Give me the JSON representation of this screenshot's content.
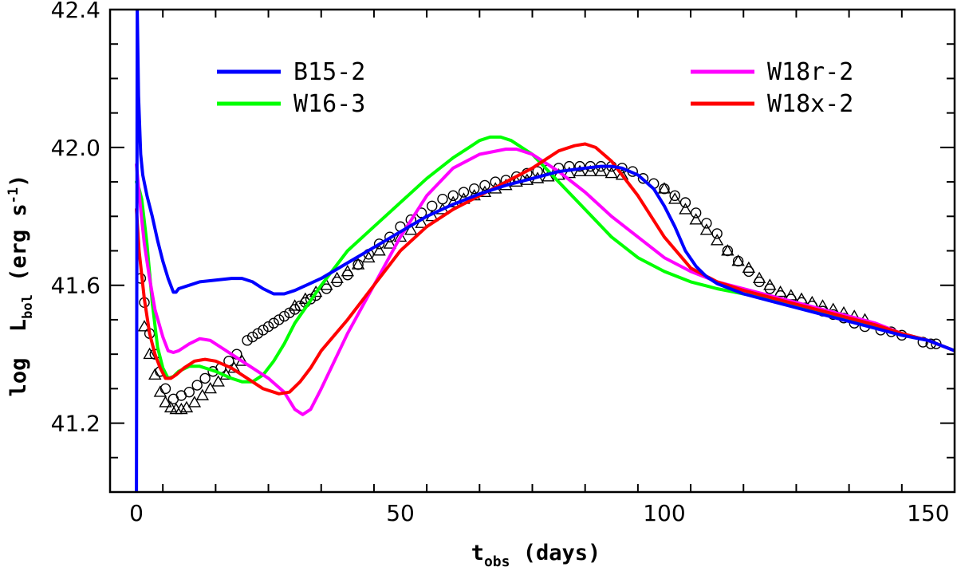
{
  "chart_data": {
    "type": "line",
    "title": "",
    "xlabel": {
      "main": "t",
      "sub": "obs",
      "rest": " (days)"
    },
    "ylabel": {
      "main": "log  L",
      "sub": "bol",
      "rest": " (erg s",
      "sup": "-1",
      "close": ")"
    },
    "xlim": [
      -5,
      155
    ],
    "ylim": [
      41.0,
      42.4
    ],
    "x_ticks": [
      0,
      50,
      100,
      150
    ],
    "x_tick_labels": [
      "0",
      "50",
      "100",
      "150"
    ],
    "y_ticks": [
      41.2,
      41.6,
      42.0,
      42.4
    ],
    "y_tick_labels": [
      "41.2",
      "41.6",
      "42.0",
      "42.4"
    ],
    "series": [
      {
        "name": "B15-2",
        "color": "#0000ff",
        "x": [
          0,
          0.15,
          0.4,
          0.8,
          1.2,
          2,
          3,
          4,
          5,
          6,
          7,
          7.5,
          8,
          10,
          12,
          15,
          18,
          20,
          22,
          24,
          26,
          28,
          30,
          35,
          40,
          45,
          50,
          55,
          60,
          65,
          70,
          75,
          80,
          85,
          88,
          90,
          92,
          95,
          98,
          100,
          102,
          104,
          106,
          108,
          110,
          115,
          120,
          125,
          130,
          135,
          140,
          145,
          150,
          155
        ],
        "y": [
          41.0,
          42.4,
          42.15,
          41.98,
          41.92,
          41.86,
          41.8,
          41.73,
          41.67,
          41.62,
          41.58,
          41.58,
          41.59,
          41.6,
          41.61,
          41.615,
          41.62,
          41.62,
          41.61,
          41.59,
          41.575,
          41.575,
          41.585,
          41.62,
          41.665,
          41.71,
          41.755,
          41.8,
          41.835,
          41.865,
          41.89,
          41.91,
          41.93,
          41.94,
          41.945,
          41.945,
          41.94,
          41.92,
          41.88,
          41.83,
          41.77,
          41.7,
          41.655,
          41.625,
          41.605,
          41.575,
          41.555,
          41.535,
          41.515,
          41.495,
          41.475,
          41.455,
          41.44,
          41.41
        ]
      },
      {
        "name": "W16-3",
        "color": "#00ff00",
        "x": [
          0,
          0.5,
          1,
          2,
          3,
          4,
          5,
          6,
          7,
          8,
          10,
          12,
          15,
          18,
          20,
          22,
          24,
          26,
          28,
          30,
          35,
          40,
          45,
          50,
          55,
          60,
          63,
          65,
          67,
          69,
          71,
          73,
          75,
          80,
          85,
          90,
          95,
          100,
          105,
          110,
          115,
          120,
          125,
          130,
          135,
          140,
          145,
          150,
          155
        ],
        "y": [
          41.9,
          41.88,
          41.85,
          41.72,
          41.55,
          41.42,
          41.36,
          41.33,
          41.335,
          41.35,
          41.365,
          41.365,
          41.35,
          41.33,
          41.32,
          41.32,
          41.34,
          41.38,
          41.43,
          41.49,
          41.6,
          41.7,
          41.77,
          41.84,
          41.91,
          41.97,
          42.0,
          42.02,
          42.03,
          42.03,
          42.02,
          42.0,
          41.98,
          41.9,
          41.82,
          41.74,
          41.68,
          41.64,
          41.61,
          41.59,
          41.575,
          41.56,
          41.54,
          41.52,
          41.5,
          41.48,
          41.46,
          41.44,
          41.41
        ]
      },
      {
        "name": "W18r-2",
        "color": "#ff00ff",
        "x": [
          0,
          0.3,
          0.8,
          1.5,
          2.5,
          3.5,
          5,
          6,
          7,
          8,
          9,
          10,
          12,
          14,
          16,
          18,
          20,
          22,
          25,
          28,
          30,
          31.5,
          33,
          35,
          40,
          45,
          50,
          55,
          60,
          65,
          70,
          72,
          75,
          80,
          85,
          90,
          95,
          100,
          105,
          110,
          115,
          120,
          125,
          130,
          135,
          140,
          145,
          150,
          155
        ],
        "y": [
          41.95,
          41.9,
          41.82,
          41.72,
          41.62,
          41.53,
          41.45,
          41.41,
          41.405,
          41.41,
          41.42,
          41.43,
          41.445,
          41.44,
          41.42,
          41.4,
          41.38,
          41.36,
          41.33,
          41.29,
          41.24,
          41.225,
          41.24,
          41.3,
          41.46,
          41.6,
          41.74,
          41.86,
          41.94,
          41.98,
          41.995,
          41.995,
          41.98,
          41.93,
          41.87,
          41.8,
          41.74,
          41.68,
          41.64,
          41.61,
          41.59,
          41.57,
          41.55,
          41.53,
          41.51,
          41.49,
          41.46,
          41.44,
          41.41
        ]
      },
      {
        "name": "W18x-2",
        "color": "#ff0000",
        "x": [
          0,
          0.5,
          1.5,
          2.5,
          3.5,
          4.5,
          5.5,
          6.5,
          7.5,
          9,
          11,
          13,
          15,
          18,
          21,
          24,
          27,
          29,
          31,
          33,
          35,
          40,
          45,
          50,
          55,
          60,
          65,
          70,
          75,
          80,
          83,
          85,
          87,
          90,
          95,
          100,
          105,
          110,
          115,
          120,
          125,
          130,
          135,
          140,
          145,
          150,
          155
        ],
        "y": [
          41.82,
          41.7,
          41.56,
          41.46,
          41.4,
          41.36,
          41.33,
          41.33,
          41.34,
          41.36,
          41.38,
          41.385,
          41.38,
          41.36,
          41.33,
          41.3,
          41.285,
          41.29,
          41.32,
          41.36,
          41.41,
          41.5,
          41.6,
          41.7,
          41.77,
          41.82,
          41.86,
          41.9,
          41.94,
          41.99,
          42.005,
          42.01,
          42.0,
          41.96,
          41.86,
          41.74,
          41.65,
          41.61,
          41.585,
          41.565,
          41.545,
          41.525,
          41.505,
          41.485,
          41.46,
          41.44,
          41.41
        ]
      }
    ],
    "observations": [
      {
        "name": "circles",
        "marker": "circle",
        "x": [
          0.8,
          1.5,
          2.5,
          3.5,
          4.5,
          5.5,
          7,
          8.5,
          10,
          11.5,
          13,
          14.5,
          16,
          17.5,
          19,
          21,
          22,
          23,
          24,
          25,
          26,
          27,
          28,
          29,
          30,
          31,
          32,
          33,
          34,
          36,
          38,
          40,
          42,
          44,
          46,
          48,
          50,
          52,
          54,
          56,
          58,
          60,
          62,
          64,
          66,
          68,
          70,
          72,
          74,
          76,
          78,
          80,
          82,
          84,
          86,
          88,
          90,
          92,
          94,
          96,
          98,
          100,
          102,
          104,
          106,
          108,
          110,
          112,
          114,
          116,
          118,
          120,
          122,
          124,
          126,
          128,
          130,
          132,
          134,
          136,
          138,
          141,
          143,
          145,
          149,
          150.5,
          151.5
        ],
        "y": [
          41.62,
          41.55,
          41.46,
          41.4,
          41.35,
          41.3,
          41.27,
          41.28,
          41.29,
          41.31,
          41.33,
          41.35,
          41.36,
          41.38,
          41.4,
          41.44,
          41.45,
          41.46,
          41.47,
          41.48,
          41.49,
          41.5,
          41.51,
          41.52,
          41.53,
          41.54,
          41.55,
          41.56,
          41.57,
          41.59,
          41.61,
          41.63,
          41.66,
          41.69,
          41.72,
          41.74,
          41.77,
          41.79,
          41.81,
          41.83,
          41.85,
          41.86,
          41.87,
          41.88,
          41.89,
          41.9,
          41.905,
          41.915,
          41.925,
          41.93,
          41.935,
          41.94,
          41.945,
          41.945,
          41.945,
          41.945,
          41.945,
          41.94,
          41.93,
          41.91,
          41.895,
          41.88,
          41.86,
          41.84,
          41.81,
          41.78,
          41.75,
          41.7,
          41.67,
          41.64,
          41.61,
          41.59,
          41.57,
          41.56,
          41.55,
          41.54,
          41.525,
          41.515,
          41.505,
          41.49,
          41.48,
          41.47,
          41.465,
          41.455,
          41.435,
          41.43,
          41.43
        ]
      },
      {
        "name": "triangles",
        "marker": "triangle",
        "x": [
          1.5,
          2.5,
          3.5,
          4.5,
          5.5,
          6.5,
          7.5,
          8.5,
          9.5,
          11,
          12.5,
          14,
          15.5,
          17,
          18.5,
          20,
          30,
          32,
          34,
          36,
          38,
          40,
          42,
          44,
          46,
          48,
          50,
          52,
          54,
          56,
          58,
          60,
          62,
          64,
          66,
          68,
          70,
          72,
          74,
          76,
          78,
          80,
          82,
          84,
          86,
          88,
          90,
          92,
          100,
          102,
          104,
          106,
          108,
          110,
          112,
          114,
          116,
          118,
          120,
          122,
          124,
          126,
          128,
          130,
          132,
          134,
          136,
          138
        ],
        "y": [
          41.48,
          41.4,
          41.34,
          41.29,
          41.26,
          41.245,
          41.24,
          41.24,
          41.245,
          41.26,
          41.28,
          41.3,
          41.32,
          41.34,
          41.36,
          41.38,
          41.54,
          41.56,
          41.58,
          41.6,
          41.62,
          41.64,
          41.66,
          41.68,
          41.7,
          41.72,
          41.74,
          41.76,
          41.78,
          41.8,
          41.82,
          41.84,
          41.85,
          41.86,
          41.87,
          41.88,
          41.89,
          41.9,
          41.905,
          41.91,
          41.915,
          41.92,
          41.925,
          41.93,
          41.93,
          41.93,
          41.925,
          41.92,
          41.88,
          41.85,
          41.82,
          41.79,
          41.76,
          41.73,
          41.7,
          41.67,
          41.65,
          41.62,
          41.6,
          41.58,
          41.57,
          41.56,
          41.55,
          41.54,
          41.53,
          41.52,
          41.51,
          41.5
        ]
      }
    ],
    "legend": [
      {
        "label": "B15-2",
        "color": "#0000ff"
      },
      {
        "label": "W16-3",
        "color": "#00ff00"
      },
      {
        "label": "W18r-2",
        "color": "#ff00ff"
      },
      {
        "label": "W18x-2",
        "color": "#ff0000"
      }
    ]
  }
}
